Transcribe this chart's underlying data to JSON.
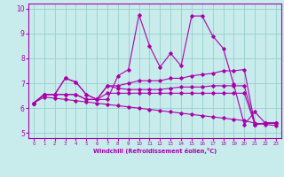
{
  "xlabel": "Windchill (Refroidissement éolien,°C)",
  "bg_color": "#c8ecec",
  "line_color": "#aa00aa",
  "grid_color": "#99cccc",
  "x_hours": [
    0,
    1,
    2,
    3,
    4,
    5,
    6,
    7,
    8,
    9,
    10,
    11,
    12,
    13,
    14,
    15,
    16,
    17,
    18,
    19,
    20,
    21,
    22,
    23
  ],
  "series1": [
    6.2,
    6.55,
    6.55,
    7.2,
    7.05,
    6.55,
    6.35,
    6.35,
    7.3,
    7.55,
    9.75,
    8.5,
    7.65,
    8.2,
    7.7,
    9.7,
    9.7,
    8.9,
    8.4,
    6.95,
    5.35,
    5.85,
    5.4,
    5.4
  ],
  "series2": [
    6.2,
    6.55,
    6.55,
    7.2,
    7.05,
    6.55,
    6.35,
    6.9,
    6.9,
    7.0,
    7.1,
    7.1,
    7.1,
    7.2,
    7.2,
    7.3,
    7.35,
    7.4,
    7.5,
    7.5,
    7.55,
    5.35,
    5.4,
    5.4
  ],
  "series3": [
    6.2,
    6.55,
    6.55,
    6.55,
    6.55,
    6.35,
    6.35,
    6.9,
    6.8,
    6.75,
    6.75,
    6.75,
    6.75,
    6.8,
    6.85,
    6.85,
    6.85,
    6.9,
    6.9,
    6.9,
    6.9,
    5.35,
    5.4,
    5.4
  ],
  "series4": [
    6.2,
    6.55,
    6.55,
    6.55,
    6.55,
    6.35,
    6.35,
    6.6,
    6.6,
    6.6,
    6.6,
    6.6,
    6.6,
    6.6,
    6.6,
    6.6,
    6.6,
    6.6,
    6.6,
    6.6,
    6.6,
    5.35,
    5.4,
    5.4
  ],
  "series5": [
    6.2,
    6.45,
    6.4,
    6.35,
    6.3,
    6.25,
    6.2,
    6.15,
    6.1,
    6.05,
    6.0,
    5.95,
    5.9,
    5.85,
    5.8,
    5.75,
    5.7,
    5.65,
    5.6,
    5.55,
    5.5,
    5.4,
    5.35,
    5.3
  ],
  "ylim": [
    4.8,
    10.2
  ],
  "xlim": [
    -0.5,
    23.5
  ],
  "yticks": [
    5,
    6,
    7,
    8,
    9,
    10
  ],
  "xticks": [
    0,
    1,
    2,
    3,
    4,
    5,
    6,
    7,
    8,
    9,
    10,
    11,
    12,
    13,
    14,
    15,
    16,
    17,
    18,
    19,
    20,
    21,
    22,
    23
  ]
}
